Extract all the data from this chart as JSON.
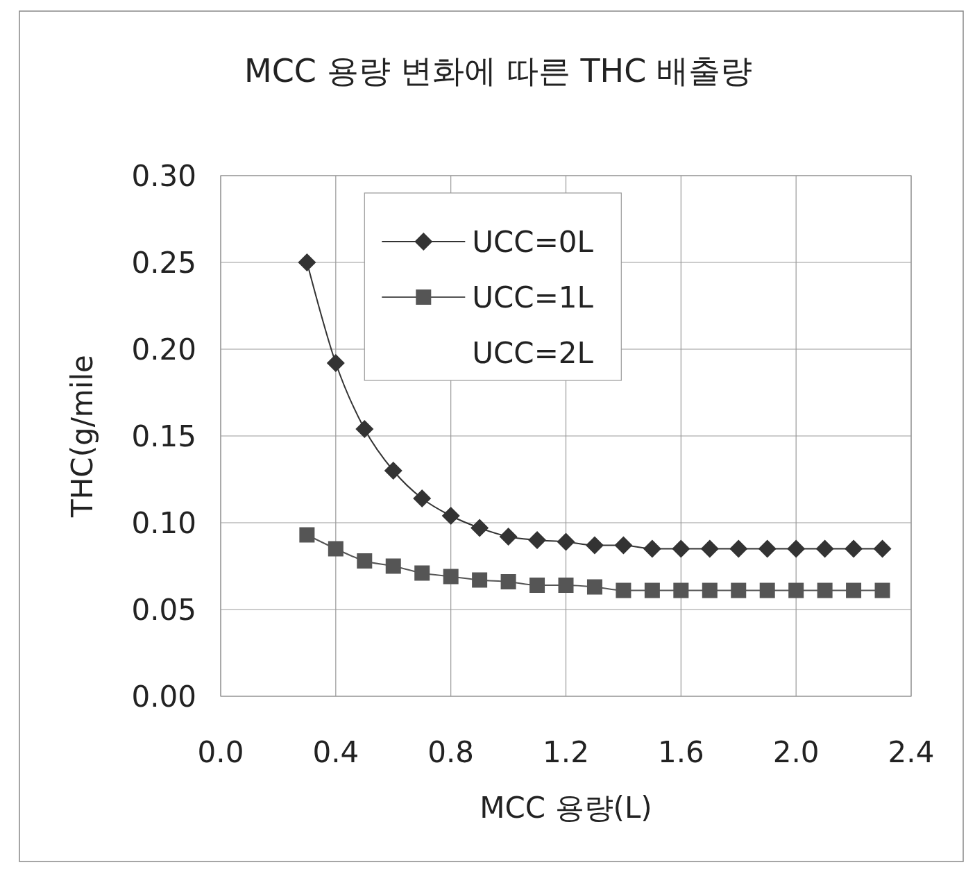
{
  "chart_data": {
    "type": "line",
    "title": "MCC 용량 변화에 따른 THC 배출량",
    "xlabel": "MCC 용량(L)",
    "ylabel": "THC(g/mile",
    "x": [
      0.3,
      0.4,
      0.5,
      0.6,
      0.7,
      0.8,
      0.9,
      1.0,
      1.1,
      1.2,
      1.3,
      1.4,
      1.5,
      1.6,
      1.7,
      1.8,
      1.9,
      2.0,
      2.1,
      2.2,
      2.3
    ],
    "series": [
      {
        "name": "UCC=0L",
        "color": "#333333",
        "marker": "diamond",
        "values": [
          0.25,
          0.192,
          0.154,
          0.13,
          0.114,
          0.104,
          0.097,
          0.092,
          0.09,
          0.089,
          0.087,
          0.087,
          0.085,
          0.085,
          0.085,
          0.085,
          0.085,
          0.085,
          0.085,
          0.085,
          0.085
        ]
      },
      {
        "name": "UCC=1L",
        "color": "#555555",
        "marker": "square",
        "values": [
          0.093,
          0.085,
          0.078,
          0.075,
          0.071,
          0.069,
          0.067,
          0.066,
          0.064,
          0.064,
          0.063,
          0.061,
          0.061,
          0.061,
          0.061,
          0.061,
          0.061,
          0.061,
          0.061,
          0.061,
          0.061
        ]
      },
      {
        "name": "UCC=2L",
        "marker": "none",
        "values": [
          null,
          null,
          null,
          null,
          null,
          null,
          null,
          null,
          null,
          null,
          null,
          null,
          null,
          null,
          null,
          null,
          null,
          null,
          null,
          null,
          null
        ]
      }
    ],
    "xlim": [
      0,
      2.4
    ],
    "xticks": [
      {
        "value": 0,
        "label": "0.0"
      },
      0.4,
      0.8,
      1.2,
      1.6,
      {
        "value": 2,
        "label": "2.0"
      },
      2.4
    ],
    "ylim": [
      0,
      0.3
    ],
    "yticks": [
      {
        "value": 0,
        "label": "0.00"
      },
      0.05,
      {
        "value": 0.1,
        "label": "0.10"
      },
      0.15,
      {
        "value": 0.2,
        "label": "0.20"
      },
      0.25,
      {
        "value": 0.3,
        "label": "0.30"
      }
    ],
    "grid": true,
    "legend": "top"
  }
}
